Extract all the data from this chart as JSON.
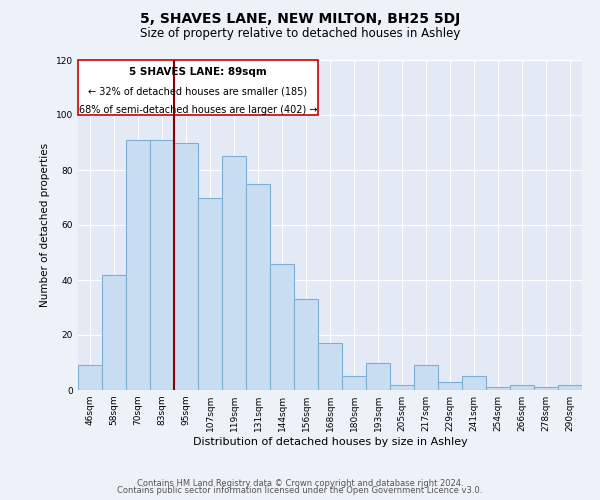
{
  "title": "5, SHAVES LANE, NEW MILTON, BH25 5DJ",
  "subtitle": "Size of property relative to detached houses in Ashley",
  "xlabel": "Distribution of detached houses by size in Ashley",
  "ylabel": "Number of detached properties",
  "bar_labels": [
    "46sqm",
    "58sqm",
    "70sqm",
    "83sqm",
    "95sqm",
    "107sqm",
    "119sqm",
    "131sqm",
    "144sqm",
    "156sqm",
    "168sqm",
    "180sqm",
    "193sqm",
    "205sqm",
    "217sqm",
    "229sqm",
    "241sqm",
    "254sqm",
    "266sqm",
    "278sqm",
    "290sqm"
  ],
  "bar_values": [
    9,
    42,
    91,
    91,
    90,
    70,
    85,
    75,
    46,
    33,
    17,
    5,
    10,
    2,
    9,
    3,
    5,
    1,
    2,
    1,
    2
  ],
  "bar_color": "#c9ddf2",
  "bar_edge_color": "#7bafd4",
  "ylim": [
    0,
    120
  ],
  "yticks": [
    0,
    20,
    40,
    60,
    80,
    100,
    120
  ],
  "property_line_label": "5 SHAVES LANE: 89sqm",
  "annotation_line1": "← 32% of detached houses are smaller (185)",
  "annotation_line2": "68% of semi-detached houses are larger (402) →",
  "footer1": "Contains HM Land Registry data © Crown copyright and database right 2024.",
  "footer2": "Contains public sector information licensed under the Open Government Licence v3.0.",
  "background_color": "#edf1f8",
  "plot_background": "#e4eaf5"
}
